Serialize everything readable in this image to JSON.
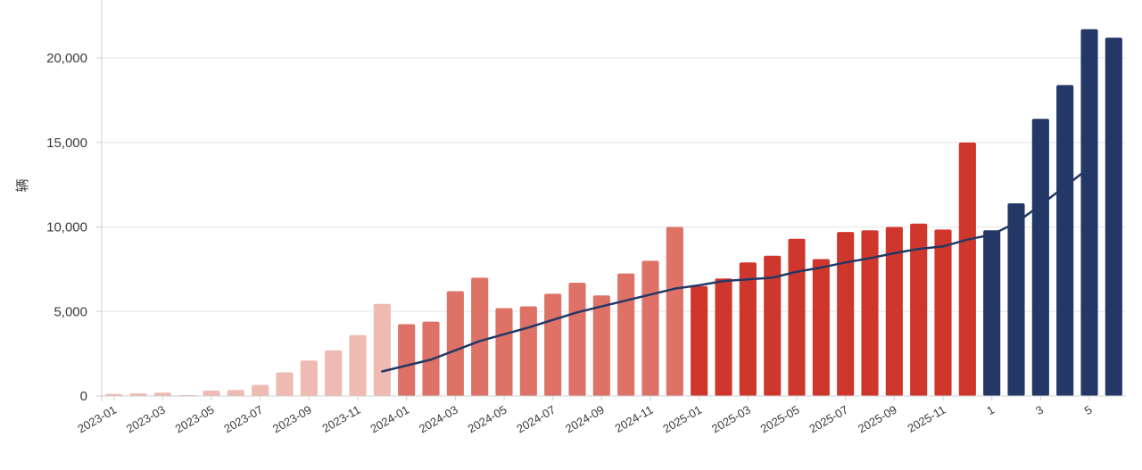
{
  "chart_data": {
    "type": "bar",
    "ylabel": "辆",
    "xlabel": "",
    "ylim": [
      0,
      23000
    ],
    "yticks": [
      0,
      5000,
      10000,
      15000,
      20000
    ],
    "ytick_labels": [
      "0",
      "5,000",
      "10,000",
      "15,000",
      "20,000"
    ],
    "grid": true,
    "legend": "none",
    "categories": [
      "2023-01",
      "2023-02",
      "2023-03",
      "2023-04",
      "2023-05",
      "2023-06",
      "2023-07",
      "2023-08",
      "2023-09",
      "2023-10",
      "2023-11",
      "2023-12",
      "2024-01",
      "2024-02",
      "2024-03",
      "2024-04",
      "2024-05",
      "2024-06",
      "2024-07",
      "2024-08",
      "2024-09",
      "2024-10",
      "2024-11",
      "2024-12",
      "2025-01",
      "2025-02",
      "2025-03",
      "2025-04",
      "2025-05",
      "2025-06",
      "2025-07",
      "2025-08",
      "2025-09",
      "2025-10",
      "2025-11",
      "2025-12",
      "2026-01",
      "2026-02",
      "2026-03",
      "2026-04",
      "2026-05",
      "2026-06"
    ],
    "xtick_labels": [
      "2023-01",
      "2023-03",
      "2023-05",
      "2023-07",
      "2023-09",
      "2023-11",
      "2024-01",
      "2024-03",
      "2024-05",
      "2024-07",
      "2024-09",
      "2024-11",
      "2025-01",
      "2025-03",
      "2025-05",
      "2025-07",
      "2025-09",
      "2025-11",
      "1",
      "3",
      "5"
    ],
    "xtick_indices": [
      0,
      2,
      4,
      6,
      8,
      10,
      12,
      14,
      16,
      18,
      20,
      22,
      24,
      26,
      28,
      30,
      32,
      34,
      36,
      38,
      40
    ],
    "values": [
      120,
      150,
      200,
      50,
      320,
      350,
      650,
      1400,
      2100,
      2700,
      3600,
      5450,
      4250,
      4400,
      6200,
      7000,
      5200,
      5300,
      6050,
      6700,
      5950,
      7250,
      8000,
      10000,
      6500,
      6950,
      7900,
      8300,
      9300,
      8100,
      9700,
      9800,
      10000,
      10200,
      9850,
      15000,
      9800,
      11400,
      16400,
      18400,
      21700,
      21200
    ],
    "colors": [
      "#efbab1",
      "#efbab1",
      "#efbab1",
      "#efbab1",
      "#efbab1",
      "#efbab1",
      "#efbab1",
      "#efbab1",
      "#efbab1",
      "#efbab1",
      "#efbab1",
      "#efbab1",
      "#de7266",
      "#de7266",
      "#de7266",
      "#de7266",
      "#de7266",
      "#de7266",
      "#de7266",
      "#de7266",
      "#de7266",
      "#de7266",
      "#de7266",
      "#de7266",
      "#d0372c",
      "#d0372c",
      "#d0372c",
      "#d0372c",
      "#d0372c",
      "#d0372c",
      "#d0372c",
      "#d0372c",
      "#d0372c",
      "#d0372c",
      "#d0372c",
      "#d0372c",
      "#233866",
      "#233866",
      "#233866",
      "#233866",
      "#233866",
      "#233866"
    ],
    "line_series": {
      "start_index": 11,
      "values": [
        1450,
        1800,
        2150,
        2700,
        3250,
        3650,
        4050,
        4500,
        4950,
        5300,
        5650,
        6000,
        6350,
        6550,
        6800,
        6900,
        7000,
        7350,
        7600,
        7900,
        8150,
        8450,
        8700,
        8850,
        9250,
        9550,
        10250,
        11300,
        12400,
        13500
      ]
    },
    "colors_meta": {
      "line": "#233866",
      "grid": "#e6e6e6",
      "axis": "#cfcfcf"
    }
  }
}
